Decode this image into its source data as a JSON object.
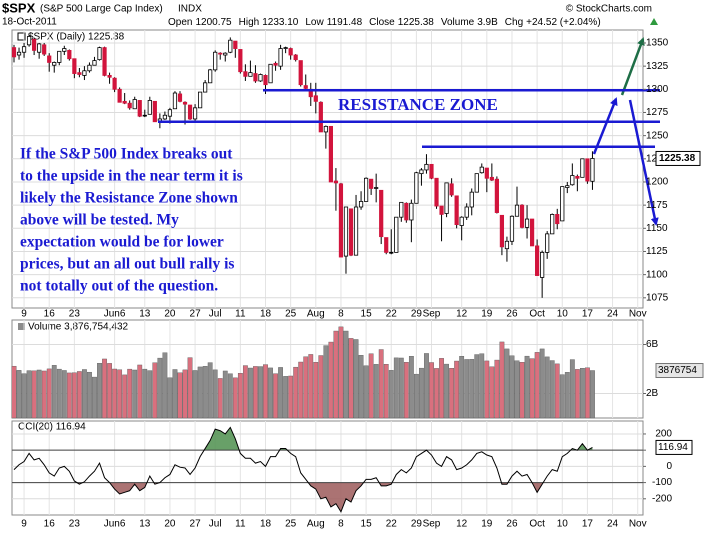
{
  "header": {
    "symbol": "$SPX",
    "name": "(S&P 500 Large Cap Index)",
    "exchange": "INDX",
    "source": "© StockCharts.com",
    "date": "18-Oct-2011",
    "quote": [
      [
        "Open",
        "1200.75"
      ],
      [
        "High",
        "1233.10"
      ],
      [
        "Low",
        "1191.48"
      ],
      [
        "Close",
        "1225.38"
      ],
      [
        "Volume",
        "3.9B"
      ],
      [
        "Chg",
        "+24.52 (+2.04%)"
      ]
    ]
  },
  "chart_data": [
    {
      "type": "candlestick",
      "legend": "$SPX (Daily) 1225.38",
      "last_label": "1225.38",
      "up_color": "#ffffff",
      "down_color": "#d2143c",
      "open": [
        1345,
        1337,
        1340,
        1348,
        1354,
        1340,
        1348,
        1336,
        1326,
        1329,
        1341,
        1342,
        1333,
        1318,
        1315,
        1320,
        1326,
        1332,
        1345,
        1315,
        1312,
        1300,
        1287,
        1285,
        1279,
        1288,
        1272,
        1273,
        1287,
        1266,
        1268,
        1271,
        1279,
        1295,
        1286,
        1283,
        1268,
        1280,
        1297,
        1307,
        1321,
        1339,
        1337,
        1340,
        1352,
        1343,
        1319,
        1314,
        1317,
        1309,
        1315,
        1307,
        1328,
        1325,
        1344,
        1344,
        1337,
        1331,
        1304,
        1300,
        1293,
        1286,
        1254,
        1260,
        1201,
        1198,
        1120,
        1171,
        1121,
        1173,
        1179,
        1203,
        1193,
        1191,
        1140,
        1124,
        1124,
        1162,
        1177,
        1159,
        1177,
        1209,
        1213,
        1219,
        1204,
        1174,
        1166,
        1198,
        1185,
        1153,
        1162,
        1173,
        1189,
        1210,
        1215,
        1205,
        1203,
        1164,
        1128,
        1136,
        1163,
        1175,
        1151,
        1160,
        1131,
        1097,
        1124,
        1144,
        1165,
        1158,
        1194,
        1197,
        1206,
        1205,
        1225,
        1200.75
      ],
      "high": [
        1348,
        1345,
        1350,
        1359,
        1355,
        1350,
        1350,
        1339,
        1330,
        1341,
        1347,
        1343,
        1333,
        1323,
        1325,
        1329,
        1335,
        1346,
        1346,
        1318,
        1313,
        1302,
        1296,
        1288,
        1292,
        1288,
        1278,
        1292,
        1287,
        1274,
        1276,
        1280,
        1298,
        1298,
        1287,
        1283,
        1284,
        1297,
        1310,
        1322,
        1342,
        1340,
        1340,
        1356,
        1352,
        1343,
        1327,
        1331,
        1326,
        1317,
        1316,
        1327,
        1330,
        1348,
        1346,
        1345,
        1338,
        1331,
        1316,
        1307,
        1307,
        1287,
        1261,
        1260,
        1215,
        1199,
        1173,
        1171,
        1186,
        1190,
        1205,
        1203,
        1209,
        1191,
        1137,
        1149,
        1162,
        1178,
        1178,
        1181,
        1211,
        1215,
        1230,
        1219,
        1204,
        1174,
        1199,
        1204,
        1185,
        1163,
        1177,
        1193,
        1209,
        1220,
        1215,
        1220,
        1206,
        1164,
        1141,
        1164,
        1195,
        1176,
        1175,
        1160,
        1138,
        1126,
        1147,
        1166,
        1171,
        1195,
        1200,
        1220,
        1208,
        1225,
        1225,
        1233.1
      ],
      "low": [
        1329,
        1332,
        1334,
        1346,
        1337,
        1333,
        1336,
        1319,
        1318,
        1326,
        1337,
        1331,
        1312,
        1313,
        1310,
        1318,
        1326,
        1331,
        1314,
        1306,
        1297,
        1286,
        1284,
        1278,
        1279,
        1270,
        1270,
        1273,
        1265,
        1258,
        1267,
        1263,
        1279,
        1286,
        1262,
        1267,
        1264,
        1280,
        1297,
        1307,
        1319,
        1332,
        1330,
        1339,
        1334,
        1317,
        1309,
        1314,
        1307,
        1308,
        1295,
        1307,
        1320,
        1321,
        1339,
        1332,
        1330,
        1303,
        1299,
        1282,
        1274,
        1254,
        1236,
        1200,
        1169,
        1119,
        1101,
        1120,
        1121,
        1170,
        1179,
        1186,
        1178,
        1133,
        1122,
        1122,
        1124,
        1157,
        1156,
        1135,
        1177,
        1196,
        1209,
        1203,
        1171,
        1136,
        1162,
        1184,
        1150,
        1137,
        1159,
        1164,
        1189,
        1209,
        1189,
        1201,
        1166,
        1121,
        1114,
        1132,
        1163,
        1150,
        1139,
        1131,
        1099,
        1075,
        1117,
        1144,
        1149,
        1158,
        1188,
        1196,
        1190,
        1205,
        1198,
        1191.48
      ],
      "close": [
        1335,
        1340,
        1346,
        1357,
        1342,
        1349,
        1338,
        1329,
        1329,
        1341,
        1344,
        1333,
        1317,
        1316,
        1320,
        1326,
        1331,
        1345,
        1315,
        1313,
        1300,
        1286,
        1285,
        1280,
        1289,
        1271,
        1272,
        1288,
        1265,
        1268,
        1272,
        1278,
        1296,
        1287,
        1284,
        1268,
        1280,
        1297,
        1307,
        1321,
        1340,
        1338,
        1339,
        1353,
        1344,
        1319,
        1314,
        1318,
        1309,
        1316,
        1305,
        1327,
        1326,
        1344,
        1345,
        1337,
        1332,
        1305,
        1301,
        1292,
        1287,
        1254,
        1260,
        1200,
        1199,
        1119,
        1173,
        1121,
        1173,
        1179,
        1204,
        1193,
        1194,
        1141,
        1124,
        1124,
        1162,
        1178,
        1159,
        1177,
        1210,
        1213,
        1219,
        1204,
        1174,
        1165,
        1199,
        1186,
        1154,
        1162,
        1173,
        1189,
        1209,
        1216,
        1204,
        1202,
        1167,
        1130,
        1136,
        1163,
        1175,
        1151,
        1160,
        1131,
        1099,
        1124,
        1144,
        1165,
        1155,
        1195,
        1196,
        1207,
        1204,
        1225,
        1201,
        1225.38
      ],
      "ylim": [
        1064,
        1364
      ],
      "yticks": [
        1075,
        1100,
        1125,
        1150,
        1175,
        1200,
        1225,
        1250,
        1275,
        1300,
        1325,
        1350
      ],
      "grid": true,
      "xticks": [
        {
          "value": 2,
          "label": "9"
        },
        {
          "value": 7,
          "label": "16"
        },
        {
          "value": 12,
          "label": "23"
        },
        {
          "value": 20,
          "label": "Jun6"
        },
        {
          "value": 26,
          "label": "13"
        },
        {
          "value": 31,
          "label": "20"
        },
        {
          "value": 36,
          "label": "27"
        },
        {
          "value": 40,
          "label": "Jul"
        },
        {
          "value": 45,
          "label": "11"
        },
        {
          "value": 50,
          "label": "18"
        },
        {
          "value": 55,
          "label": "25"
        },
        {
          "value": 60,
          "label": "Aug"
        },
        {
          "value": 65,
          "label": "8"
        },
        {
          "value": 70,
          "label": "15"
        },
        {
          "value": 75,
          "label": "22"
        },
        {
          "value": 80,
          "label": "29"
        },
        {
          "value": 83,
          "label": "Sep"
        },
        {
          "value": 89,
          "label": "12"
        },
        {
          "value": 94,
          "label": "19"
        },
        {
          "value": 99,
          "label": "26"
        },
        {
          "value": 104,
          "label": "Oct"
        },
        {
          "value": 109,
          "label": "10"
        },
        {
          "value": 114,
          "label": "17"
        },
        {
          "value": 119,
          "label": "24"
        },
        {
          "value": 124,
          "label": "Nov"
        }
      ],
      "resistance_levels": [
        1299,
        1265,
        1238
      ],
      "resistance_color": "#1a1ad2",
      "resistance_label": "RESISTANCE ZONE",
      "commentary": [
        "If the S&P 500 Index breaks out",
        "to the upside in the near term it is",
        "likely the Resistance Zone shown",
        "above will be tested. My",
        "expectation would be for lower",
        "prices, but an all out bull rally is",
        "not totally out of the question."
      ]
    },
    {
      "type": "bar",
      "legend": "Volume 3,876,754,432",
      "last_label": "3876754",
      "up_color": "#8c8c8c",
      "down_color": "#d9707e",
      "values": [
        4230,
        3890,
        3620,
        3870,
        3850,
        3920,
        3840,
        4010,
        4300,
        3990,
        3880,
        3680,
        3700,
        3800,
        3960,
        3740,
        3340,
        4470,
        4820,
        4460,
        4000,
        3940,
        3520,
        3990,
        3920,
        4330,
        3990,
        3870,
        4510,
        4890,
        5330,
        3290,
        3960,
        3690,
        3930,
        4930,
        3880,
        4170,
        4220,
        4520,
        3930,
        3230,
        3840,
        3610,
        3280,
        3650,
        4280,
        4080,
        4210,
        4200,
        4360,
        4090,
        3620,
        4130,
        3400,
        3430,
        4150,
        4570,
        5000,
        5190,
        4550,
        5100,
        5910,
        6200,
        7100,
        7440,
        7100,
        6500,
        6410,
        5120,
        4270,
        5250,
        4380,
        5590,
        4390,
        3890,
        4910,
        4900,
        4550,
        5040,
        3580,
        4070,
        5270,
        4530,
        4050,
        4870,
        4400,
        4060,
        4650,
        5040,
        4780,
        4790,
        5180,
        5250,
        4660,
        4180,
        4730,
        6210,
        5640,
        5080,
        4670,
        4550,
        5050,
        4850,
        5360,
        5640,
        4990,
        4690,
        4420,
        3540,
        3730,
        4770,
        3970,
        4060,
        4100,
        3876.754
      ],
      "ylim": [
        0,
        8000
      ],
      "yticks": [
        {
          "value": 6000,
          "label": "6B"
        },
        {
          "value": 2000,
          "label": "2B"
        }
      ],
      "grid": true
    },
    {
      "type": "line",
      "legend": "CCI(20) 116.94",
      "last_label": "116.94",
      "color": "#000000",
      "values": [
        -20,
        10,
        30,
        80,
        40,
        50,
        10,
        -40,
        -60,
        -10,
        0,
        -30,
        -90,
        -110,
        -95,
        -60,
        -30,
        20,
        -70,
        -100,
        -140,
        -170,
        -160,
        -150,
        -110,
        -150,
        -130,
        -60,
        -110,
        -100,
        -70,
        -50,
        10,
        -5,
        -10,
        -50,
        -10,
        60,
        110,
        160,
        230,
        220,
        200,
        240,
        170,
        80,
        50,
        50,
        20,
        30,
        0,
        60,
        60,
        110,
        110,
        80,
        60,
        -40,
        -80,
        -120,
        -140,
        -200,
        -190,
        -250,
        -230,
        -280,
        -200,
        -220,
        -150,
        -120,
        -80,
        -80,
        -70,
        -120,
        -120,
        -110,
        -50,
        -20,
        -40,
        -10,
        60,
        80,
        100,
        70,
        20,
        0,
        60,
        40,
        -20,
        -10,
        10,
        40,
        80,
        90,
        70,
        60,
        -10,
        -110,
        -110,
        -60,
        -30,
        -60,
        -50,
        -100,
        -160,
        -110,
        -60,
        -20,
        -30,
        60,
        80,
        110,
        100,
        140,
        100,
        116.94
      ],
      "ylim": [
        -300,
        280
      ],
      "yticks": [
        200,
        100,
        0,
        -100,
        -200
      ],
      "grid": true,
      "bands": [
        {
          "level": 100,
          "color": "#4e8f4e"
        },
        {
          "level": -100,
          "color": "#9c5a5a"
        }
      ]
    }
  ]
}
